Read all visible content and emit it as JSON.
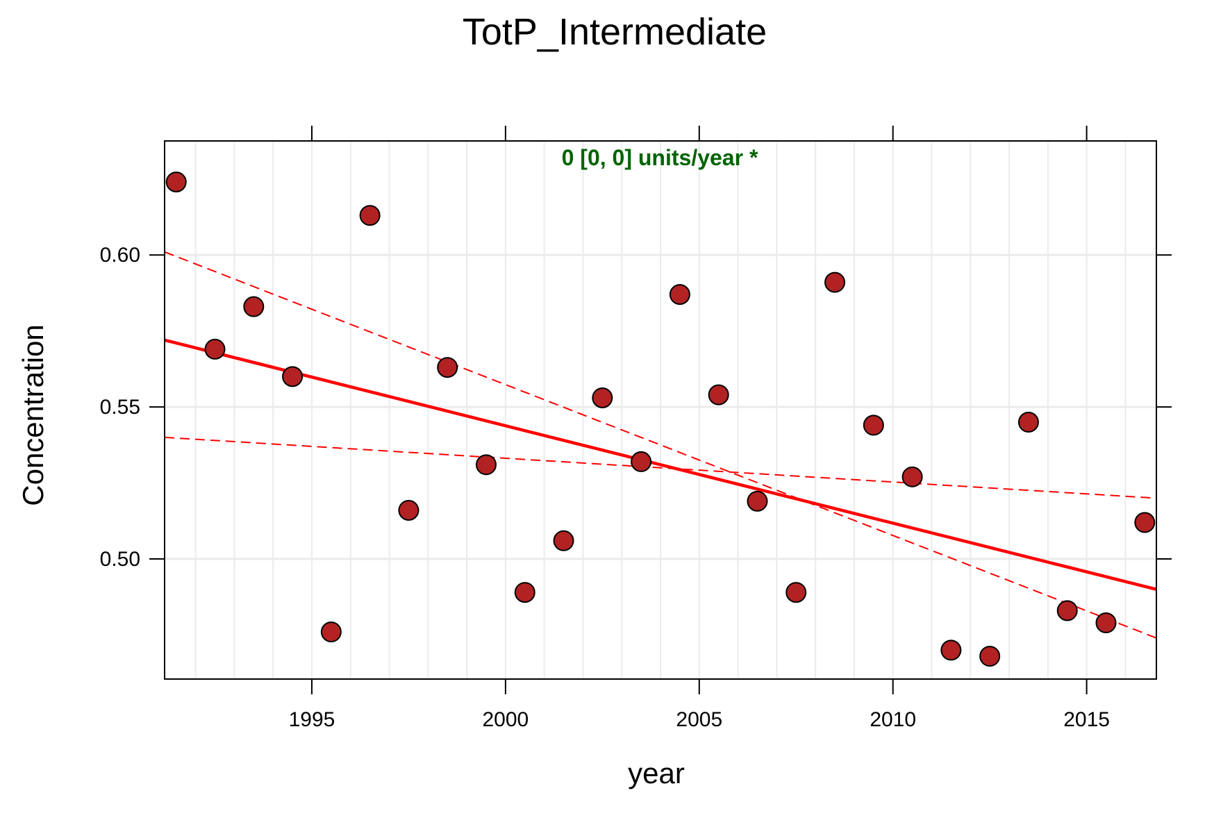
{
  "chart_data": {
    "type": "scatter",
    "title": "TotP_Intermediate",
    "xlabel": "year",
    "ylabel": "Concentration",
    "xlim": [
      1991.2,
      2016.8
    ],
    "ylim": [
      0.4605,
      0.6375
    ],
    "x_ticks": [
      1995,
      2000,
      2005,
      2010,
      2015
    ],
    "x_tick_labels": [
      "1995",
      "2000",
      "2005",
      "2010",
      "2015"
    ],
    "y_ticks": [
      0.5,
      0.55,
      0.6
    ],
    "y_tick_labels": [
      "0.50",
      "0.55",
      "0.60"
    ],
    "grid": true,
    "annotation": "0 [0, 0] units/year *",
    "colors": {
      "point_fill": "#b22222",
      "point_stroke": "#000000",
      "trend": "#ff0000",
      "annotation": "#006400",
      "grid": "#ebebeb"
    },
    "points": [
      {
        "x": 1991.5,
        "y": 0.624
      },
      {
        "x": 1992.5,
        "y": 0.569
      },
      {
        "x": 1993.5,
        "y": 0.583
      },
      {
        "x": 1994.5,
        "y": 0.56
      },
      {
        "x": 1995.5,
        "y": 0.476
      },
      {
        "x": 1996.5,
        "y": 0.613
      },
      {
        "x": 1997.5,
        "y": 0.516
      },
      {
        "x": 1998.5,
        "y": 0.563
      },
      {
        "x": 1999.5,
        "y": 0.531
      },
      {
        "x": 2000.5,
        "y": 0.489
      },
      {
        "x": 2001.5,
        "y": 0.506
      },
      {
        "x": 2002.5,
        "y": 0.553
      },
      {
        "x": 2003.5,
        "y": 0.532
      },
      {
        "x": 2004.5,
        "y": 0.587
      },
      {
        "x": 2005.5,
        "y": 0.554
      },
      {
        "x": 2006.5,
        "y": 0.519
      },
      {
        "x": 2007.5,
        "y": 0.489
      },
      {
        "x": 2008.5,
        "y": 0.591
      },
      {
        "x": 2009.5,
        "y": 0.544
      },
      {
        "x": 2010.5,
        "y": 0.527
      },
      {
        "x": 2011.5,
        "y": 0.47
      },
      {
        "x": 2012.5,
        "y": 0.468
      },
      {
        "x": 2013.5,
        "y": 0.545
      },
      {
        "x": 2014.5,
        "y": 0.483
      },
      {
        "x": 2015.5,
        "y": 0.479
      },
      {
        "x": 2016.5,
        "y": 0.512
      }
    ],
    "trend_line": {
      "x": [
        1991.2,
        2016.8
      ],
      "y": [
        0.572,
        0.49
      ]
    },
    "ci_lines": [
      {
        "x": [
          1991.2,
          2016.8
        ],
        "y": [
          0.601,
          0.474
        ]
      },
      {
        "x": [
          1991.2,
          2016.8
        ],
        "y": [
          0.54,
          0.52
        ]
      }
    ]
  }
}
